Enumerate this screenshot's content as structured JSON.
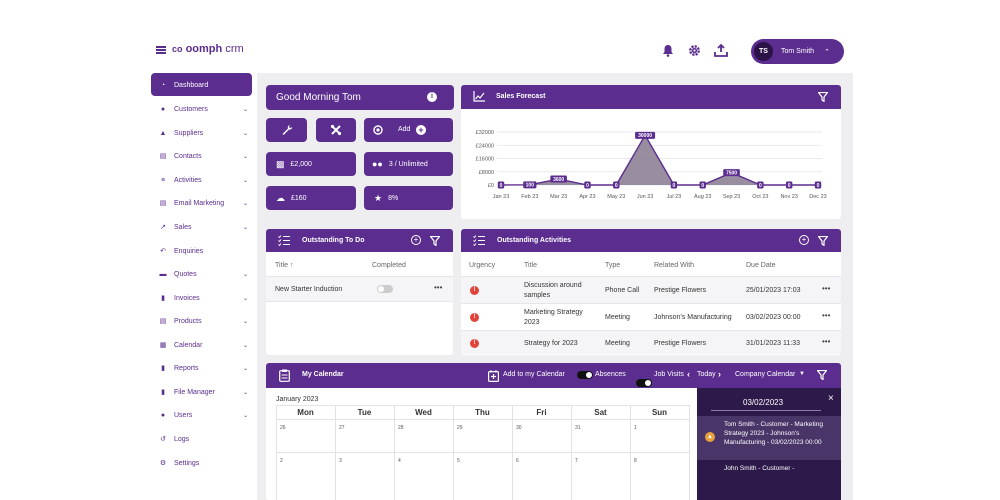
{
  "brand": {
    "logo_text": "oomph",
    "logo_suffix": "crm",
    "accent": "#5b2d8e"
  },
  "header": {
    "icons": [
      "bell-icon",
      "gear-icon",
      "upload-icon"
    ],
    "user": {
      "initials": "TS",
      "name": "Tom Smith"
    }
  },
  "sidebar": {
    "items": [
      {
        "label": "Dashboard",
        "icon": "dashboard-icon",
        "active": true,
        "has_children": false
      },
      {
        "label": "Customers",
        "icon": "customers-icon",
        "has_children": true
      },
      {
        "label": "Suppliers",
        "icon": "suppliers-icon",
        "has_children": true
      },
      {
        "label": "Contacts",
        "icon": "contacts-icon",
        "has_children": true
      },
      {
        "label": "Activities",
        "icon": "activities-icon",
        "has_children": true
      },
      {
        "label": "Email Marketing",
        "icon": "email-icon",
        "has_children": true
      },
      {
        "label": "Sales",
        "icon": "sales-icon",
        "has_children": true
      },
      {
        "label": "Enquiries",
        "icon": "enquiries-icon",
        "has_children": false
      },
      {
        "label": "Quotes",
        "icon": "quotes-icon",
        "has_children": true
      },
      {
        "label": "Invoices",
        "icon": "invoices-icon",
        "has_children": true
      },
      {
        "label": "Products",
        "icon": "products-icon",
        "has_children": true
      },
      {
        "label": "Calendar",
        "icon": "calendar-icon",
        "has_children": true
      },
      {
        "label": "Reports",
        "icon": "reports-icon",
        "has_children": true
      },
      {
        "label": "File Manager",
        "icon": "file-manager-icon",
        "has_children": true
      },
      {
        "label": "Users",
        "icon": "users-icon",
        "has_children": true
      },
      {
        "label": "Logs",
        "icon": "logs-icon",
        "has_children": false
      },
      {
        "label": "Settings",
        "icon": "settings-icon",
        "has_children": false
      }
    ]
  },
  "greeting": {
    "text": "Good Morning Tom"
  },
  "quick": {
    "add_label": "Add",
    "stat_sales": "£2,000",
    "stat_users": "3 / Unlimited",
    "stat_forecast": "£160",
    "stat_trophy": "8%"
  },
  "sales_forecast": {
    "title": "Sales Forecast",
    "chart_data": {
      "type": "area",
      "categories": [
        "Jan 23",
        "Feb 23",
        "Mar 23",
        "Apr 23",
        "May 23",
        "Jun 23",
        "Jul 23",
        "Aug 23",
        "Sep 23",
        "Oct 23",
        "Nov 23",
        "Dec 23"
      ],
      "values": [
        0,
        100,
        3600,
        0,
        0,
        30000,
        0,
        0,
        7500,
        0,
        0,
        0
      ],
      "data_labels": [
        "0",
        "100",
        "3600",
        "0",
        "0",
        "30000",
        "0",
        "0",
        "7500",
        "0",
        "0",
        "0"
      ],
      "y_ticks": [
        "£32000",
        "£24000",
        "£16000",
        "£8000",
        "£0"
      ],
      "ylim": [
        0,
        32000
      ],
      "grid": true,
      "color": "#5b2d8e",
      "fill": "#8d8296"
    }
  },
  "todo": {
    "title": "Outstanding To Do",
    "columns": [
      "Title ↑",
      "Completed"
    ],
    "rows": [
      {
        "title": "New Starter Induction"
      }
    ]
  },
  "activities": {
    "title": "Outstanding Activities",
    "columns": [
      "Urgency",
      "Title",
      "Type",
      "Related With",
      "Due Date"
    ],
    "rows": [
      {
        "title": "Discussion around samples",
        "type": "Phone Call",
        "related": "Prestige Flowers",
        "due": "25/01/2023 17:03"
      },
      {
        "title": "Marketing Strategy 2023",
        "type": "Meeting",
        "related": "Johnson's Manufacturing",
        "due": "03/02/2023 00:00"
      },
      {
        "title": "Strategy for 2023",
        "type": "Meeting",
        "related": "Prestige Flowers",
        "due": "31/01/2023 11:33"
      }
    ]
  },
  "calendar": {
    "title": "My Calendar",
    "add_label": "Add to my Calendar",
    "absences_label": "Absences",
    "job_visits_label": "Job Visits",
    "today_label": "Today",
    "view_label": "Company Calendar",
    "month_label": "January 2023",
    "days": [
      "Mon",
      "Tue",
      "Wed",
      "Thu",
      "Fri",
      "Sat",
      "Sun"
    ],
    "week1": [
      "26",
      "27",
      "28",
      "29",
      "30",
      "31",
      "1"
    ],
    "week2": [
      "2",
      "3",
      "4",
      "5",
      "6",
      "7",
      "8"
    ],
    "side_date": "03/02/2023",
    "events": [
      {
        "text": "Tom Smith - Customer - Marketing Strategy 2023 - Johnson's Manufacturing - 03/02/2023 00:00"
      },
      {
        "text": "John Smith - Customer -"
      }
    ]
  }
}
